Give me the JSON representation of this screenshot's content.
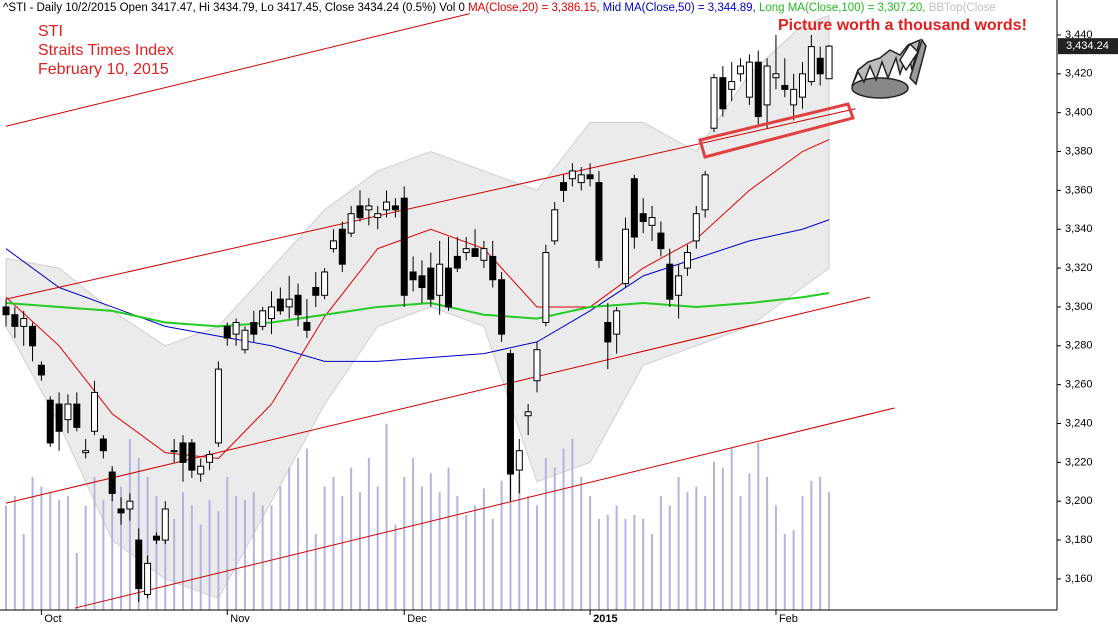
{
  "chart_data": {
    "type": "candlestick",
    "header": {
      "quote": "^STI - Daily 10/2/2015 Open 3417.47, Hi 3434.79, Lo 3417.45, Close 3434.24 (0.5%) Vol 0",
      "ma20": "MA(Close,20) = 3,386.15,",
      "ma50": "Mid MA(Close,50) = 3,344.89,",
      "ma100": "Long MA(Close,100) = 3,307.20,",
      "bb": "BBTop(Close"
    },
    "title": "STI",
    "subtitle": "Straits Times Index",
    "date_label": "February 10, 2015",
    "annotation": "Picture worth a thousand words!",
    "last_price_label": "3,434.24",
    "categories": [
      null,
      null,
      null,
      null,
      "Oct",
      null,
      null,
      null,
      null,
      null,
      null,
      null,
      null,
      null,
      null,
      null,
      null,
      null,
      null,
      null,
      null,
      null,
      null,
      null,
      null,
      "Nov",
      null,
      null,
      null,
      null,
      null,
      null,
      null,
      null,
      null,
      null,
      null,
      null,
      null,
      null,
      null,
      null,
      null,
      null,
      null,
      "Dec",
      null,
      null,
      null,
      null,
      null,
      null,
      null,
      null,
      null,
      null,
      null,
      null,
      null,
      null,
      null,
      null,
      null,
      null,
      null,
      null,
      "2015",
      null,
      null,
      null,
      null,
      null,
      null,
      null,
      null,
      null,
      null,
      null,
      null,
      null,
      null,
      null,
      null,
      null,
      null,
      null,
      null,
      "Feb",
      null,
      null,
      null,
      null,
      null,
      null
    ],
    "open": [
      3300,
      3296,
      3290,
      3290,
      3270,
      3252,
      3250,
      3242,
      3250,
      3225,
      3236,
      3232,
      3215,
      3196,
      3196,
      3180,
      3152,
      3182,
      3180,
      3226,
      3230,
      3230,
      3214,
      3220,
      3230,
      3290,
      3286,
      3278,
      3292,
      3290,
      3294,
      3304,
      3300,
      3306,
      3292,
      3310,
      3306,
      3330,
      3340,
      3338,
      3352,
      3350,
      3346,
      3350,
      3352,
      3356,
      3318,
      3316,
      3320,
      3306,
      3320,
      3326,
      3328,
      3330,
      3324,
      3326,
      3314,
      3276,
      3216,
      3244,
      3262,
      3292,
      3334,
      3364,
      3366,
      3364,
      3368,
      3364,
      3292,
      3286,
      3312,
      3366,
      3348,
      3342,
      3338,
      3322,
      3306,
      3320,
      3334,
      3350,
      3392,
      3418,
      3412,
      3420,
      3408,
      3426,
      3404,
      3418,
      3414,
      3404,
      3408,
      3416,
      3428,
      3417.47
    ],
    "high": [
      3304,
      3300,
      3298,
      3292,
      3272,
      3254,
      3256,
      3255,
      3256,
      3232,
      3262,
      3234,
      3218,
      3202,
      3204,
      3186,
      3172,
      3184,
      3200,
      3232,
      3234,
      3232,
      3222,
      3226,
      3272,
      3292,
      3294,
      3290,
      3298,
      3300,
      3308,
      3310,
      3316,
      3312,
      3304,
      3318,
      3320,
      3340,
      3344,
      3352,
      3360,
      3356,
      3352,
      3360,
      3356,
      3362,
      3326,
      3324,
      3328,
      3334,
      3336,
      3336,
      3336,
      3340,
      3334,
      3334,
      3318,
      3278,
      3232,
      3250,
      3282,
      3332,
      3354,
      3368,
      3374,
      3372,
      3374,
      3370,
      3302,
      3300,
      3346,
      3368,
      3356,
      3352,
      3344,
      3330,
      3322,
      3332,
      3352,
      3370,
      3420,
      3424,
      3426,
      3428,
      3430,
      3432,
      3428,
      3440,
      3428,
      3420,
      3426,
      3440,
      3434,
      3434.79
    ],
    "low": [
      3290,
      3284,
      3280,
      3272,
      3262,
      3228,
      3226,
      3235,
      3236,
      3222,
      3234,
      3222,
      3200,
      3188,
      3190,
      3148,
      3150,
      3178,
      3178,
      3220,
      3210,
      3212,
      3210,
      3216,
      3228,
      3280,
      3280,
      3276,
      3282,
      3288,
      3286,
      3296,
      3294,
      3290,
      3284,
      3300,
      3304,
      3328,
      3318,
      3336,
      3344,
      3342,
      3340,
      3346,
      3346,
      3300,
      3308,
      3302,
      3300,
      3296,
      3298,
      3318,
      3324,
      3326,
      3320,
      3310,
      3282,
      3200,
      3204,
      3234,
      3256,
      3290,
      3332,
      3354,
      3362,
      3360,
      3362,
      3320,
      3268,
      3276,
      3310,
      3330,
      3338,
      3334,
      3326,
      3300,
      3294,
      3316,
      3330,
      3346,
      3390,
      3398,
      3406,
      3416,
      3404,
      3394,
      3392,
      3412,
      3408,
      3396,
      3402,
      3414,
      3414,
      3417.45
    ],
    "close": [
      3296,
      3290,
      3294,
      3280,
      3265,
      3230,
      3236,
      3250,
      3238,
      3226,
      3256,
      3226,
      3204,
      3194,
      3200,
      3155,
      3168,
      3180,
      3196,
      3226,
      3220,
      3216,
      3218,
      3224,
      3268,
      3284,
      3292,
      3288,
      3286,
      3298,
      3300,
      3298,
      3304,
      3296,
      3288,
      3306,
      3318,
      3334,
      3322,
      3348,
      3346,
      3352,
      3348,
      3354,
      3350,
      3306,
      3314,
      3310,
      3304,
      3322,
      3300,
      3320,
      3330,
      3326,
      3330,
      3314,
      3286,
      3214,
      3226,
      3246,
      3278,
      3328,
      3350,
      3360,
      3370,
      3368,
      3366,
      3324,
      3282,
      3298,
      3340,
      3336,
      3344,
      3346,
      3330,
      3304,
      3316,
      3328,
      3348,
      3368,
      3418,
      3402,
      3416,
      3424,
      3426,
      3398,
      3424,
      3420,
      3412,
      3412,
      3420,
      3434,
      3420,
      3434.24
    ],
    "volume": [
      55,
      60,
      40,
      70,
      65,
      62,
      58,
      60,
      30,
      55,
      70,
      58,
      75,
      65,
      90,
      80,
      70,
      60,
      40,
      48,
      62,
      55,
      45,
      58,
      52,
      70,
      60,
      58,
      62,
      55,
      55,
      65,
      75,
      80,
      85,
      40,
      65,
      70,
      60,
      75,
      62,
      80,
      65,
      98,
      45,
      70,
      80,
      65,
      72,
      62,
      75,
      60,
      50,
      55,
      64,
      48,
      68,
      78,
      72,
      60,
      55,
      80,
      75,
      85,
      90,
      70,
      60,
      48,
      50,
      55,
      48,
      50,
      48,
      40,
      60,
      55,
      70,
      62,
      65,
      60,
      78,
      75,
      85,
      60,
      72,
      88,
      70,
      55,
      40,
      42,
      60,
      68,
      70,
      62
    ],
    "volume_color": "#b4b4e0",
    "lines": [
      {
        "color": "#e00000",
        "x": [
          0,
          6,
          12,
          18,
          24,
          30,
          36,
          42,
          48,
          54,
          60,
          66,
          72,
          78,
          84,
          90,
          93
        ],
        "values": [
          3305,
          3280,
          3245,
          3225,
          3222,
          3250,
          3295,
          3330,
          3340,
          3330,
          3300,
          3300,
          3320,
          3335,
          3360,
          3380,
          3386.15
        ]
      },
      {
        "color": "#0000c8",
        "x": [
          0,
          6,
          12,
          18,
          24,
          30,
          36,
          42,
          48,
          54,
          60,
          66,
          72,
          78,
          84,
          90,
          93
        ],
        "values": [
          3330,
          3310,
          3300,
          3290,
          3285,
          3280,
          3272,
          3272,
          3274,
          3276,
          3282,
          3298,
          3316,
          3325,
          3334,
          3340,
          3344.89
        ]
      },
      {
        "color": "#22cc22",
        "x": [
          0,
          6,
          12,
          18,
          24,
          30,
          36,
          42,
          48,
          54,
          60,
          66,
          72,
          78,
          84,
          90,
          93
        ],
        "values": [
          3302,
          3300,
          3298,
          3292,
          3290,
          3292,
          3296,
          3300,
          3302,
          3296,
          3294,
          3300,
          3302,
          3300,
          3302,
          3305,
          3307.2
        ]
      }
    ],
    "band": {
      "color": "#ebebeb",
      "x": [
        0,
        6,
        12,
        18,
        24,
        30,
        36,
        42,
        48,
        54,
        60,
        66,
        72,
        78,
        84,
        90,
        93
      ],
      "upper": [
        3325,
        3320,
        3298,
        3280,
        3290,
        3320,
        3350,
        3370,
        3380,
        3370,
        3360,
        3395,
        3395,
        3380,
        3420,
        3445,
        3450
      ],
      "lower": [
        3290,
        3240,
        3180,
        3160,
        3150,
        3200,
        3250,
        3290,
        3300,
        3290,
        3210,
        3220,
        3270,
        3280,
        3290,
        3310,
        3320
      ]
    },
    "trendlines": [
      {
        "color": "#d00000",
        "x": [
          0,
          52.4
        ],
        "values": [
          3393,
          3451
        ]
      },
      {
        "color": "#d00000",
        "x": [
          0,
          96
        ],
        "values": [
          3304,
          3402
        ]
      },
      {
        "color": "#d00000",
        "x": [
          0,
          97.6
        ],
        "values": [
          3199,
          3305
        ]
      },
      {
        "color": "#d00000",
        "x": [
          7.8,
          100.4
        ],
        "values": [
          3145,
          3248
        ]
      }
    ],
    "ylim": [
      3144,
      3458
    ],
    "yticks": [
      {
        "value": 3160,
        "label": "3,160"
      },
      {
        "value": 3180,
        "label": "3,180"
      },
      {
        "value": 3200,
        "label": "3,200"
      },
      {
        "value": 3220,
        "label": "3,220"
      },
      {
        "value": 3240,
        "label": "3,240"
      },
      {
        "value": 3260,
        "label": "3,260"
      },
      {
        "value": 3280,
        "label": "3,280"
      },
      {
        "value": 3300,
        "label": "3,300"
      },
      {
        "value": 3320,
        "label": "3,320"
      },
      {
        "value": 3340,
        "label": "3,340"
      },
      {
        "value": 3360,
        "label": "3,360"
      },
      {
        "value": 3380,
        "label": "3,380"
      },
      {
        "value": 3400,
        "label": "3,400"
      },
      {
        "value": 3420,
        "label": "3,420"
      },
      {
        "value": 3440,
        "label": "3,440"
      }
    ]
  }
}
